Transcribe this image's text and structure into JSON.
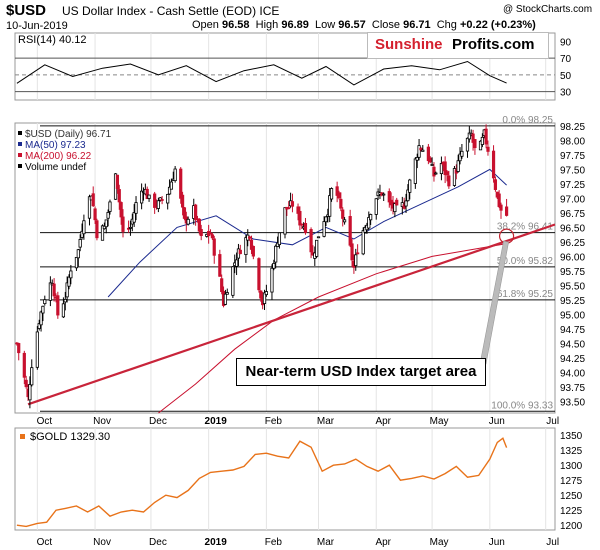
{
  "header": {
    "symbol": "$USD",
    "description": "US Dollar Index - Cash Settle (EOD) ICE",
    "date": "10-Jun-2019",
    "open_label": "Open",
    "open": "96.58",
    "high_label": "High",
    "high": "96.89",
    "low_label": "Low",
    "low": "96.57",
    "close_label": "Close",
    "close": "96.71",
    "chg_label": "Chg",
    "chg": "+0.22 (+0.23%)",
    "stamp": "@ StockCharts.com"
  },
  "logo": {
    "part1": "Sunshine",
    "part2": "Profits.com"
  },
  "callout": "Near-term USD Index target area",
  "colors": {
    "price_up": "#000000",
    "price_down": "#c8102e",
    "ma50": "#1b2a8f",
    "ma200": "#c8102e",
    "trendline": "#c8243a",
    "gold": "#e8731a",
    "target_circle": "#c0222e",
    "pointer": "#bbbbbb"
  },
  "chart_data": [
    {
      "type": "line",
      "name": "rsi",
      "title": "RSI(14) 40.12",
      "ylim": [
        20,
        100
      ],
      "y_ticks": [
        90,
        70,
        50,
        30
      ],
      "reference_lines": [
        70,
        50,
        30
      ],
      "grid": false,
      "x": [
        "2018-09-20",
        "2018-10-05",
        "2018-10-20",
        "2018-11-05",
        "2018-11-20",
        "2018-12-05",
        "2018-12-20",
        "2019-01-05",
        "2019-01-20",
        "2019-02-05",
        "2019-02-20",
        "2019-03-05",
        "2019-03-20",
        "2019-04-05",
        "2019-04-20",
        "2019-05-05",
        "2019-05-20",
        "2019-06-01",
        "2019-06-10"
      ],
      "values": [
        40,
        62,
        48,
        58,
        63,
        50,
        61,
        42,
        55,
        62,
        46,
        60,
        38,
        57,
        61,
        56,
        66,
        49,
        40.12
      ]
    },
    {
      "type": "candlestick",
      "name": "usd",
      "title": "$USD (Daily) 96.71",
      "legend": [
        {
          "label": "$USD (Daily) 96.71",
          "color": "#000000"
        },
        {
          "label": "MA(50) 97.23",
          "color": "#1b2a8f"
        },
        {
          "label": "MA(200) 96.22",
          "color": "#c8102e"
        },
        {
          "label": "Volume undef",
          "color": "#000000"
        }
      ],
      "ylim": [
        93.3,
        98.3
      ],
      "y_ticks": [
        "98.25",
        "98.00",
        "97.75",
        "97.50",
        "97.25",
        "97.00",
        "96.75",
        "96.50",
        "96.25",
        "96.00",
        "95.75",
        "95.50",
        "95.25",
        "95.00",
        "94.75",
        "94.50",
        "94.25",
        "94.00",
        "93.75",
        "93.50"
      ],
      "x_axis_labels": [
        {
          "label": "Oct",
          "date": "2018-10-01"
        },
        {
          "label": "Nov",
          "date": "2018-11-01"
        },
        {
          "label": "Dec",
          "date": "2018-12-01"
        },
        {
          "label": "2019",
          "date": "2019-01-01"
        },
        {
          "label": "Feb",
          "date": "2019-02-01"
        },
        {
          "label": "Mar",
          "date": "2019-03-01"
        },
        {
          "label": "Apr",
          "date": "2019-04-01"
        },
        {
          "label": "May",
          "date": "2019-05-01"
        },
        {
          "label": "Jun",
          "date": "2019-06-01"
        },
        {
          "label": "Jul",
          "date": "2019-07-01"
        }
      ],
      "x_range": [
        "2018-09-19",
        "2019-07-06"
      ],
      "close_path": [
        [
          "2018-09-20",
          94.5
        ],
        [
          "2018-09-24",
          93.9
        ],
        [
          "2018-09-26",
          93.55
        ],
        [
          "2018-09-28",
          94.15
        ],
        [
          "2018-10-02",
          94.9
        ],
        [
          "2018-10-05",
          95.3
        ],
        [
          "2018-10-09",
          95.6
        ],
        [
          "2018-10-12",
          95.0
        ],
        [
          "2018-10-16",
          95.3
        ],
        [
          "2018-10-19",
          95.8
        ],
        [
          "2018-10-23",
          96.1
        ],
        [
          "2018-10-26",
          96.7
        ],
        [
          "2018-10-30",
          97.1
        ],
        [
          "2018-11-02",
          96.4
        ],
        [
          "2018-11-06",
          96.5
        ],
        [
          "2018-11-09",
          96.9
        ],
        [
          "2018-11-12",
          97.5
        ],
        [
          "2018-11-16",
          96.4
        ],
        [
          "2018-11-20",
          96.5
        ],
        [
          "2018-11-23",
          96.9
        ],
        [
          "2018-11-27",
          97.2
        ],
        [
          "2018-12-01",
          96.9
        ],
        [
          "2018-12-05",
          96.9
        ],
        [
          "2018-12-10",
          97.1
        ],
        [
          "2018-12-14",
          97.5
        ],
        [
          "2018-12-19",
          96.6
        ],
        [
          "2018-12-24",
          96.8
        ],
        [
          "2018-12-28",
          96.3
        ],
        [
          "2019-01-02",
          96.4
        ],
        [
          "2019-01-06",
          95.8
        ],
        [
          "2019-01-09",
          95.2
        ],
        [
          "2019-01-12",
          95.6
        ],
        [
          "2019-01-16",
          96.0
        ],
        [
          "2019-01-19",
          96.2
        ],
        [
          "2019-01-23",
          96.4
        ],
        [
          "2019-01-26",
          95.8
        ],
        [
          "2019-01-30",
          95.2
        ],
        [
          "2019-02-03",
          95.6
        ],
        [
          "2019-02-07",
          96.3
        ],
        [
          "2019-02-11",
          96.8
        ],
        [
          "2019-02-15",
          96.9
        ],
        [
          "2019-02-19",
          96.6
        ],
        [
          "2019-02-22",
          96.5
        ],
        [
          "2019-02-26",
          96.0
        ],
        [
          "2019-03-02",
          96.5
        ],
        [
          "2019-03-06",
          96.8
        ],
        [
          "2019-03-09",
          97.3
        ],
        [
          "2019-03-13",
          96.8
        ],
        [
          "2019-03-17",
          96.3
        ],
        [
          "2019-03-20",
          95.8
        ],
        [
          "2019-03-23",
          96.3
        ],
        [
          "2019-03-27",
          96.6
        ],
        [
          "2019-03-31",
          97.0
        ],
        [
          "2019-04-04",
          97.1
        ],
        [
          "2019-04-08",
          96.9
        ],
        [
          "2019-04-12",
          96.8
        ],
        [
          "2019-04-16",
          96.9
        ],
        [
          "2019-04-20",
          97.4
        ],
        [
          "2019-04-24",
          97.9
        ],
        [
          "2019-04-28",
          97.8
        ],
        [
          "2019-05-02",
          97.4
        ],
        [
          "2019-05-06",
          97.6
        ],
        [
          "2019-05-10",
          97.3
        ],
        [
          "2019-05-14",
          97.5
        ],
        [
          "2019-05-18",
          97.9
        ],
        [
          "2019-05-22",
          98.1
        ],
        [
          "2019-05-25",
          97.7
        ],
        [
          "2019-05-29",
          98.1
        ],
        [
          "2019-06-02",
          97.6
        ],
        [
          "2019-06-05",
          97.0
        ],
        [
          "2019-06-08",
          96.7
        ],
        [
          "2019-06-10",
          96.71
        ]
      ],
      "ma50": [
        [
          "2018-11-08",
          95.3
        ],
        [
          "2018-11-25",
          95.9
        ],
        [
          "2018-12-15",
          96.5
        ],
        [
          "2019-01-05",
          96.7
        ],
        [
          "2019-01-25",
          96.3
        ],
        [
          "2019-02-15",
          96.2
        ],
        [
          "2019-03-05",
          96.5
        ],
        [
          "2019-03-20",
          96.3
        ],
        [
          "2019-04-05",
          96.6
        ],
        [
          "2019-04-25",
          96.9
        ],
        [
          "2019-05-15",
          97.2
        ],
        [
          "2019-06-01",
          97.5
        ],
        [
          "2019-06-10",
          97.23
        ]
      ],
      "ma200": [
        [
          "2018-12-05",
          93.3
        ],
        [
          "2018-12-25",
          93.8
        ],
        [
          "2019-01-15",
          94.4
        ],
        [
          "2019-02-05",
          94.9
        ],
        [
          "2019-03-01",
          95.3
        ],
        [
          "2019-04-01",
          95.7
        ],
        [
          "2019-05-01",
          96.0
        ],
        [
          "2019-06-10",
          96.22
        ]
      ],
      "horizontal_levels": [
        {
          "label": "0.0% 98.25",
          "value": 98.25
        },
        {
          "label": "38.2% 96.41",
          "value": 96.41
        },
        {
          "label": "50.0% 95.82",
          "value": 95.82
        },
        {
          "label": "61.8% 95.25",
          "value": 95.25
        },
        {
          "label": "100.0% 93.33",
          "value": 93.33
        }
      ],
      "trendlines": [
        {
          "from": [
            "2018-09-26",
            93.45
          ],
          "to": [
            "2019-07-06",
            96.55
          ]
        }
      ],
      "target_area": {
        "date": "2019-06-10",
        "value": 96.35
      }
    },
    {
      "type": "line",
      "name": "gold",
      "title": "$GOLD 1329.30",
      "ylim": [
        1192,
        1362
      ],
      "y_ticks": [
        "1350",
        "1325",
        "1300",
        "1275",
        "1250",
        "1225",
        "1200"
      ],
      "x_axis_labels": [
        "Oct",
        "Nov",
        "Dec",
        "2019",
        "Feb",
        "Mar",
        "Apr",
        "May",
        "Jun",
        "Jul"
      ],
      "x": [
        "2018-09-20",
        "2018-09-25",
        "2018-10-01",
        "2018-10-06",
        "2018-10-11",
        "2018-10-16",
        "2018-10-22",
        "2018-10-28",
        "2018-11-03",
        "2018-11-09",
        "2018-11-15",
        "2018-11-21",
        "2018-11-27",
        "2018-12-03",
        "2018-12-09",
        "2018-12-15",
        "2018-12-21",
        "2018-12-27",
        "2019-01-02",
        "2019-01-08",
        "2019-01-14",
        "2019-01-20",
        "2019-01-26",
        "2019-02-01",
        "2019-02-07",
        "2019-02-13",
        "2019-02-19",
        "2019-02-25",
        "2019-03-03",
        "2019-03-09",
        "2019-03-15",
        "2019-03-21",
        "2019-03-27",
        "2019-04-02",
        "2019-04-08",
        "2019-04-14",
        "2019-04-20",
        "2019-04-26",
        "2019-05-02",
        "2019-05-08",
        "2019-05-14",
        "2019-05-20",
        "2019-05-26",
        "2019-06-01",
        "2019-06-05",
        "2019-06-08",
        "2019-06-10"
      ],
      "values": [
        1200,
        1198,
        1203,
        1205,
        1225,
        1228,
        1232,
        1222,
        1232,
        1215,
        1222,
        1225,
        1222,
        1238,
        1250,
        1246,
        1258,
        1278,
        1288,
        1290,
        1292,
        1298,
        1318,
        1320,
        1315,
        1312,
        1340,
        1330,
        1290,
        1300,
        1302,
        1310,
        1298,
        1290,
        1300,
        1275,
        1278,
        1282,
        1277,
        1286,
        1298,
        1280,
        1283,
        1310,
        1338,
        1345,
        1329.3
      ]
    }
  ]
}
